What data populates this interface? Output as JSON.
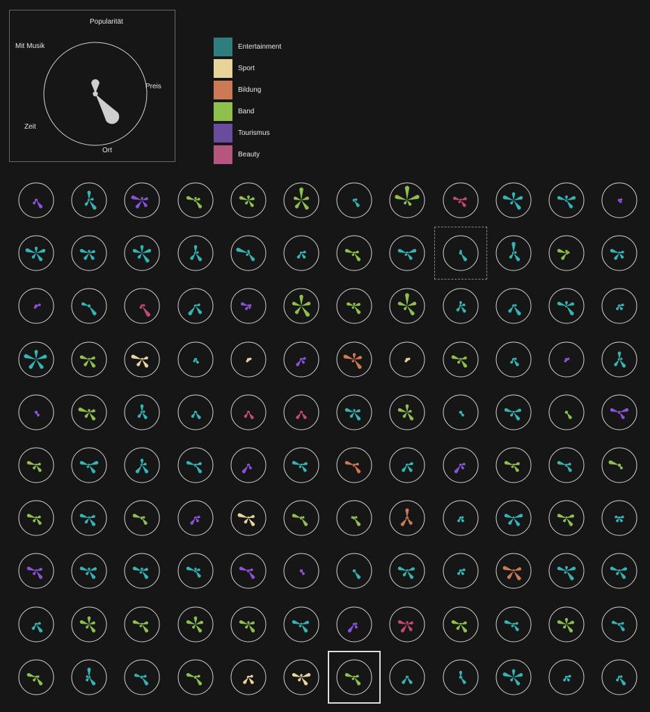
{
  "key": {
    "axes": [
      "Popularität",
      "Preis",
      "Ort",
      "Zeit",
      "Mit Musik"
    ],
    "example_values": [
      0.35,
      0.05,
      0.85,
      0.05,
      0.05
    ]
  },
  "legend": [
    {
      "label": "Entertainment",
      "color": "#2f7d7d"
    },
    {
      "label": "Sport",
      "color": "#e8d39a"
    },
    {
      "label": "Bildung",
      "color": "#cc7a55"
    },
    {
      "label": "Band",
      "color": "#8fbf4d"
    },
    {
      "label": "Tourismus",
      "color": "#6a4c9c"
    },
    {
      "label": "Beauty",
      "color": "#b5567e"
    }
  ],
  "glyph_colors": {
    "Entertainment": "#35b3b5",
    "Sport": "#e9d59c",
    "Bildung": "#d07a52",
    "Band": "#8fc04d",
    "Tourismus": "#8a52d8",
    "Beauty": "#c3487a"
  },
  "grid": {
    "hover_index": 20,
    "selected_index": 114
  },
  "events": [
    {
      "c": "Tourismus",
      "v": [
        0.1,
        0.1,
        0.6,
        0.3,
        0.1
      ]
    },
    {
      "c": "Entertainment",
      "v": [
        0.6,
        0.3,
        0.7,
        0.4,
        0.1
      ]
    },
    {
      "c": "Tourismus",
      "v": [
        0.2,
        0.4,
        0.5,
        0.6,
        0.7
      ]
    },
    {
      "c": "Band",
      "v": [
        0.2,
        0.3,
        0.6,
        0.1,
        0.6
      ]
    },
    {
      "c": "Band",
      "v": [
        0.3,
        0.4,
        0.5,
        0.3,
        0.6
      ]
    },
    {
      "c": "Band",
      "v": [
        0.8,
        0.5,
        0.7,
        0.6,
        0.5
      ]
    },
    {
      "c": "Entertainment",
      "v": [
        0.1,
        0.2,
        0.5,
        0.1,
        0.1
      ]
    },
    {
      "c": "Band",
      "v": [
        0.9,
        0.8,
        0.4,
        0.3,
        0.8
      ]
    },
    {
      "c": "Beauty",
      "v": [
        0.1,
        0.4,
        0.5,
        0.2,
        0.5
      ]
    },
    {
      "c": "Entertainment",
      "v": [
        0.5,
        0.6,
        0.7,
        0.3,
        0.7
      ]
    },
    {
      "c": "Entertainment",
      "v": [
        0.3,
        0.6,
        0.6,
        0.1,
        0.6
      ]
    },
    {
      "c": "Tourismus",
      "v": [
        0.1,
        0.2,
        0.2,
        0.1,
        0.1
      ]
    },
    {
      "c": "Entertainment",
      "v": [
        0.4,
        0.6,
        0.6,
        0.4,
        0.7
      ]
    },
    {
      "c": "Entertainment",
      "v": [
        0.2,
        0.4,
        0.5,
        0.5,
        0.6
      ]
    },
    {
      "c": "Entertainment",
      "v": [
        0.5,
        0.6,
        0.7,
        0.4,
        0.6
      ]
    },
    {
      "c": "Entertainment",
      "v": [
        0.5,
        0.2,
        0.6,
        0.5,
        0.1
      ]
    },
    {
      "c": "Entertainment",
      "v": [
        0.2,
        0.1,
        0.6,
        0.2,
        0.8
      ]
    },
    {
      "c": "Entertainment",
      "v": [
        0.1,
        0.3,
        0.4,
        0.4,
        0.1
      ]
    },
    {
      "c": "Band",
      "v": [
        0.1,
        0.3,
        0.6,
        0.2,
        0.6
      ]
    },
    {
      "c": "Entertainment",
      "v": [
        0.1,
        0.6,
        0.5,
        0.2,
        0.6
      ]
    },
    {
      "c": "Entertainment",
      "v": [
        0.2,
        0.1,
        0.6,
        0.1,
        0.1
      ]
    },
    {
      "c": "Entertainment",
      "v": [
        0.7,
        0.2,
        0.6,
        0.4,
        0.1
      ]
    },
    {
      "c": "Band",
      "v": [
        0.2,
        0.2,
        0.1,
        0.5,
        0.6
      ]
    },
    {
      "c": "Entertainment",
      "v": [
        0.1,
        0.3,
        0.4,
        0.5,
        0.6
      ]
    },
    {
      "c": "Tourismus",
      "v": [
        0.1,
        0.3,
        0.1,
        0.2,
        0.1
      ]
    },
    {
      "c": "Entertainment",
      "v": [
        0.1,
        0.1,
        0.7,
        0.1,
        0.5
      ]
    },
    {
      "c": "Beauty",
      "v": [
        0.1,
        0.2,
        0.8,
        0.2,
        0.1
      ]
    },
    {
      "c": "Entertainment",
      "v": [
        0.1,
        0.3,
        0.6,
        0.7,
        0.1
      ]
    },
    {
      "c": "Tourismus",
      "v": [
        0.1,
        0.2,
        0.2,
        0.3,
        0.5
      ]
    },
    {
      "c": "Band",
      "v": [
        0.7,
        0.6,
        0.8,
        0.6,
        0.6
      ]
    },
    {
      "c": "Band",
      "v": [
        0.2,
        0.4,
        0.6,
        0.2,
        0.5
      ]
    },
    {
      "c": "Band",
      "v": [
        0.8,
        0.6,
        0.7,
        0.3,
        0.6
      ]
    },
    {
      "c": "Entertainment",
      "v": [
        0.3,
        0.3,
        0.5,
        0.4,
        0.1
      ]
    },
    {
      "c": "Entertainment",
      "v": [
        0.1,
        0.2,
        0.7,
        0.5,
        0.1
      ]
    },
    {
      "c": "Entertainment",
      "v": [
        0.3,
        0.5,
        0.7,
        0.1,
        0.6
      ]
    },
    {
      "c": "Entertainment",
      "v": [
        0.1,
        0.3,
        0.3,
        0.3,
        0.1
      ]
    },
    {
      "c": "Entertainment",
      "v": [
        0.6,
        0.7,
        0.7,
        0.7,
        0.8
      ]
    },
    {
      "c": "Band",
      "v": [
        0.1,
        0.4,
        0.6,
        0.5,
        0.6
      ]
    },
    {
      "c": "Sport",
      "v": [
        0.1,
        0.4,
        0.6,
        0.5,
        0.7
      ]
    },
    {
      "c": "Entertainment",
      "v": [
        0.1,
        0.1,
        0.3,
        0.2,
        0.1
      ]
    },
    {
      "c": "Sport",
      "v": [
        0.1,
        0.2,
        0.1,
        0.2,
        0.1
      ]
    },
    {
      "c": "Tourismus",
      "v": [
        0.1,
        0.3,
        0.3,
        0.5,
        0.1
      ]
    },
    {
      "c": "Bildung",
      "v": [
        0.4,
        0.5,
        0.7,
        0.2,
        0.7
      ]
    },
    {
      "c": "Sport",
      "v": [
        0.1,
        0.2,
        0.1,
        0.2,
        0.1
      ]
    },
    {
      "c": "Band",
      "v": [
        0.1,
        0.4,
        0.6,
        0.3,
        0.6
      ]
    },
    {
      "c": "Entertainment",
      "v": [
        0.1,
        0.2,
        0.5,
        0.3,
        0.1
      ]
    },
    {
      "c": "Tourismus",
      "v": [
        0.1,
        0.2,
        0.1,
        0.2,
        0.1
      ]
    },
    {
      "c": "Entertainment",
      "v": [
        0.5,
        0.2,
        0.6,
        0.5,
        0.1
      ]
    },
    {
      "c": "Tourismus",
      "v": [
        0.1,
        0.1,
        0.3,
        0.1,
        0.1
      ]
    },
    {
      "c": "Band",
      "v": [
        0.2,
        0.4,
        0.6,
        0.4,
        0.7
      ]
    },
    {
      "c": "Entertainment",
      "v": [
        0.5,
        0.2,
        0.5,
        0.4,
        0.1
      ]
    },
    {
      "c": "Entertainment",
      "v": [
        0.1,
        0.1,
        0.5,
        0.4,
        0.1
      ]
    },
    {
      "c": "Beauty",
      "v": [
        0.1,
        0.1,
        0.5,
        0.4,
        0.1
      ]
    },
    {
      "c": "Beauty",
      "v": [
        0.1,
        0.1,
        0.5,
        0.5,
        0.1
      ]
    },
    {
      "c": "Entertainment",
      "v": [
        0.2,
        0.4,
        0.6,
        0.4,
        0.6
      ]
    },
    {
      "c": "Band",
      "v": [
        0.5,
        0.3,
        0.6,
        0.4,
        0.6
      ]
    },
    {
      "c": "Entertainment",
      "v": [
        0.1,
        0.1,
        0.3,
        0.1,
        0.1
      ]
    },
    {
      "c": "Entertainment",
      "v": [
        0.1,
        0.5,
        0.6,
        0.3,
        0.6
      ]
    },
    {
      "c": "Band",
      "v": [
        0.1,
        0.1,
        0.5,
        0.1,
        0.1
      ]
    },
    {
      "c": "Tourismus",
      "v": [
        0.1,
        0.6,
        0.5,
        0.1,
        0.6
      ]
    },
    {
      "c": "Band",
      "v": [
        0.1,
        0.3,
        0.5,
        0.3,
        0.6
      ]
    },
    {
      "c": "Entertainment",
      "v": [
        0.1,
        0.6,
        0.6,
        0.2,
        0.6
      ]
    },
    {
      "c": "Entertainment",
      "v": [
        0.4,
        0.3,
        0.6,
        0.6,
        0.1
      ]
    },
    {
      "c": "Entertainment",
      "v": [
        0.1,
        0.4,
        0.6,
        0.1,
        0.6
      ]
    },
    {
      "c": "Tourismus",
      "v": [
        0.1,
        0.1,
        0.3,
        0.6,
        0.1
      ]
    },
    {
      "c": "Entertainment",
      "v": [
        0.1,
        0.4,
        0.5,
        0.2,
        0.6
      ]
    },
    {
      "c": "Bildung",
      "v": [
        0.1,
        0.3,
        0.6,
        0.1,
        0.6
      ]
    },
    {
      "c": "Entertainment",
      "v": [
        0.1,
        0.4,
        0.5,
        0.5,
        0.1
      ]
    },
    {
      "c": "Tourismus",
      "v": [
        0.1,
        0.3,
        0.3,
        0.6,
        0.1
      ]
    },
    {
      "c": "Band",
      "v": [
        0.1,
        0.4,
        0.5,
        0.2,
        0.6
      ]
    },
    {
      "c": "Entertainment",
      "v": [
        0.1,
        0.3,
        0.5,
        0.1,
        0.6
      ]
    },
    {
      "c": "Band",
      "v": [
        0.1,
        0.1,
        0.3,
        0.1,
        0.7
      ]
    },
    {
      "c": "Band",
      "v": [
        0.1,
        0.3,
        0.5,
        0.3,
        0.6
      ]
    },
    {
      "c": "Entertainment",
      "v": [
        0.1,
        0.4,
        0.6,
        0.4,
        0.6
      ]
    },
    {
      "c": "Band",
      "v": [
        0.1,
        0.2,
        0.5,
        0.1,
        0.6
      ]
    },
    {
      "c": "Tourismus",
      "v": [
        0.1,
        0.3,
        0.3,
        0.5,
        0.1
      ]
    },
    {
      "c": "Sport",
      "v": [
        0.1,
        0.4,
        0.6,
        0.4,
        0.7
      ]
    },
    {
      "c": "Band",
      "v": [
        0.1,
        0.2,
        0.6,
        0.1,
        0.6
      ]
    },
    {
      "c": "Band",
      "v": [
        0.1,
        0.2,
        0.6,
        0.1,
        0.2
      ]
    },
    {
      "c": "Bildung",
      "v": [
        0.6,
        0.1,
        0.5,
        0.6,
        0.1
      ]
    },
    {
      "c": "Entertainment",
      "v": [
        0.1,
        0.2,
        0.3,
        0.3,
        0.1
      ]
    },
    {
      "c": "Entertainment",
      "v": [
        0.1,
        0.6,
        0.6,
        0.5,
        0.6
      ]
    },
    {
      "c": "Band",
      "v": [
        0.1,
        0.5,
        0.6,
        0.3,
        0.6
      ]
    },
    {
      "c": "Entertainment",
      "v": [
        0.1,
        0.3,
        0.3,
        0.3,
        0.3
      ]
    },
    {
      "c": "Tourismus",
      "v": [
        0.1,
        0.4,
        0.6,
        0.3,
        0.6
      ]
    },
    {
      "c": "Entertainment",
      "v": [
        0.2,
        0.5,
        0.6,
        0.3,
        0.6
      ]
    },
    {
      "c": "Entertainment",
      "v": [
        0.2,
        0.4,
        0.6,
        0.2,
        0.6
      ]
    },
    {
      "c": "Entertainment",
      "v": [
        0.2,
        0.3,
        0.5,
        0.1,
        0.6
      ]
    },
    {
      "c": "Tourismus",
      "v": [
        0.1,
        0.3,
        0.6,
        0.1,
        0.6
      ]
    },
    {
      "c": "Tourismus",
      "v": [
        0.1,
        0.1,
        0.3,
        0.1,
        0.1
      ]
    },
    {
      "c": "Entertainment",
      "v": [
        0.1,
        0.1,
        0.6,
        0.1,
        0.1
      ]
    },
    {
      "c": "Entertainment",
      "v": [
        0.1,
        0.5,
        0.6,
        0.4,
        0.6
      ]
    },
    {
      "c": "Entertainment",
      "v": [
        0.1,
        0.3,
        0.3,
        0.3,
        0.1
      ]
    },
    {
      "c": "Bildung",
      "v": [
        0.1,
        0.5,
        0.7,
        0.6,
        0.7
      ]
    },
    {
      "c": "Entertainment",
      "v": [
        0.3,
        0.6,
        0.7,
        0.2,
        0.6
      ]
    },
    {
      "c": "Entertainment",
      "v": [
        0.1,
        0.5,
        0.6,
        0.3,
        0.6
      ]
    },
    {
      "c": "Entertainment",
      "v": [
        0.1,
        0.3,
        0.6,
        0.4,
        0.1
      ]
    },
    {
      "c": "Band",
      "v": [
        0.5,
        0.4,
        0.6,
        0.3,
        0.6
      ]
    },
    {
      "c": "Band",
      "v": [
        0.1,
        0.4,
        0.6,
        0.2,
        0.6
      ]
    },
    {
      "c": "Band",
      "v": [
        0.5,
        0.5,
        0.6,
        0.3,
        0.6
      ]
    },
    {
      "c": "Band",
      "v": [
        0.2,
        0.4,
        0.6,
        0.3,
        0.6
      ]
    },
    {
      "c": "Entertainment",
      "v": [
        0.1,
        0.5,
        0.6,
        0.2,
        0.6
      ]
    },
    {
      "c": "Tourismus",
      "v": [
        0.1,
        0.2,
        0.3,
        0.6,
        0.1
      ]
    },
    {
      "c": "Beauty",
      "v": [
        0.2,
        0.4,
        0.5,
        0.6,
        0.6
      ]
    },
    {
      "c": "Band",
      "v": [
        0.1,
        0.4,
        0.6,
        0.4,
        0.6
      ]
    },
    {
      "c": "Entertainment",
      "v": [
        0.1,
        0.3,
        0.5,
        0.2,
        0.6
      ]
    },
    {
      "c": "Band",
      "v": [
        0.4,
        0.5,
        0.6,
        0.3,
        0.6
      ]
    },
    {
      "c": "Entertainment",
      "v": [
        0.1,
        0.3,
        0.5,
        0.1,
        0.5
      ]
    },
    {
      "c": "Band",
      "v": [
        0.1,
        0.2,
        0.6,
        0.3,
        0.6
      ]
    },
    {
      "c": "Entertainment",
      "v": [
        0.6,
        0.1,
        0.6,
        0.3,
        0.2
      ]
    },
    {
      "c": "Entertainment",
      "v": [
        0.1,
        0.3,
        0.6,
        0.1,
        0.5
      ]
    },
    {
      "c": "Band",
      "v": [
        0.1,
        0.3,
        0.6,
        0.1,
        0.6
      ]
    },
    {
      "c": "Sport",
      "v": [
        0.1,
        0.3,
        0.5,
        0.5,
        0.1
      ]
    },
    {
      "c": "Sport",
      "v": [
        0.2,
        0.6,
        0.6,
        0.3,
        0.6
      ]
    },
    {
      "c": "Band",
      "v": [
        0.1,
        0.3,
        0.6,
        0.2,
        0.6
      ]
    },
    {
      "c": "Entertainment",
      "v": [
        0.1,
        0.1,
        0.5,
        0.5,
        0.1
      ]
    },
    {
      "c": "Entertainment",
      "v": [
        0.4,
        0.1,
        0.5,
        0.1,
        0.1
      ]
    },
    {
      "c": "Entertainment",
      "v": [
        0.5,
        0.6,
        0.6,
        0.3,
        0.7
      ]
    },
    {
      "c": "Entertainment",
      "v": [
        0.1,
        0.3,
        0.3,
        0.3,
        0.1
      ]
    },
    {
      "c": "Entertainment",
      "v": [
        0.1,
        0.2,
        0.6,
        0.3,
        0.1
      ]
    }
  ]
}
